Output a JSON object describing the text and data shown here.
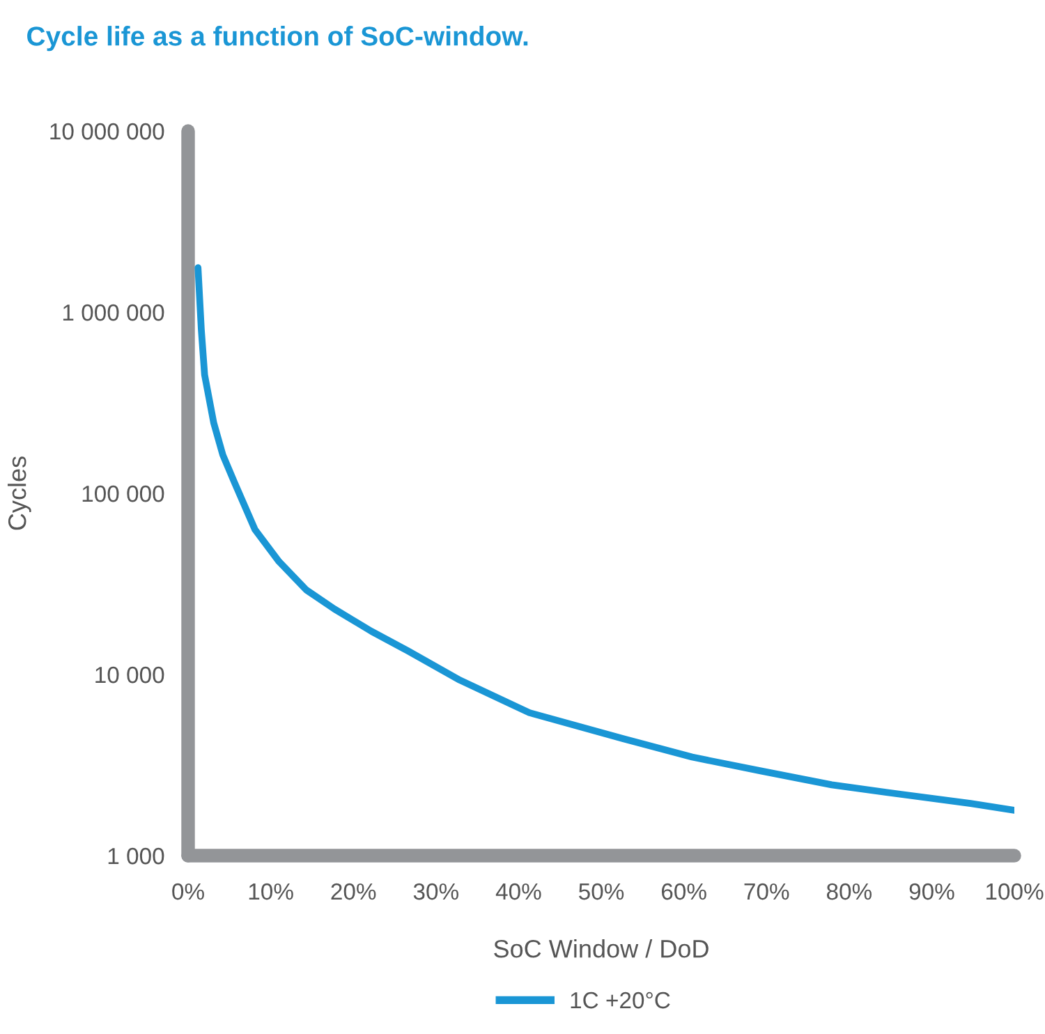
{
  "chart_data": {
    "type": "line",
    "title": "Cycle life as a function of SoC-window.",
    "xlabel": "SoC Window / DoD",
    "ylabel": "Cycles",
    "x": [
      1.2,
      1.6,
      2,
      3.1,
      4.2,
      5.6,
      8.1,
      11,
      14.3,
      17.7,
      22.2,
      26.6,
      32.9,
      41.3,
      52.6,
      61,
      69.4,
      77.9,
      86.3,
      94.7,
      100
    ],
    "series": [
      {
        "name": "1C +20°C",
        "color": "#1a96d5",
        "values": [
          1760000,
          800000,
          450000,
          245000,
          163000,
          115000,
          63000,
          42000,
          29300,
          23000,
          17300,
          13500,
          9300,
          6150,
          4430,
          3500,
          2930,
          2460,
          2180,
          1940,
          1780
        ]
      }
    ],
    "log": "y",
    "xlim": [
      0,
      100
    ],
    "ylim": [
      1000,
      10000000
    ],
    "xticks": [
      {
        "value": 0,
        "label": "0%"
      },
      {
        "value": 10,
        "label": "10%"
      },
      {
        "value": 20,
        "label": "20%"
      },
      {
        "value": 30,
        "label": "30%"
      },
      {
        "value": 40,
        "label": "40%"
      },
      {
        "value": 50,
        "label": "50%"
      },
      {
        "value": 60,
        "label": "60%"
      },
      {
        "value": 70,
        "label": "70%"
      },
      {
        "value": 80,
        "label": "80%"
      },
      {
        "value": 90,
        "label": "90%"
      },
      {
        "value": 100,
        "label": "100%"
      }
    ],
    "yticks": [
      {
        "value": 1000,
        "label": "1 000"
      },
      {
        "value": 10000,
        "label": "10 000"
      },
      {
        "value": 100000,
        "label": "100 000"
      },
      {
        "value": 1000000,
        "label": "1 000 000"
      },
      {
        "value": 10000000,
        "label": "10 000 000"
      }
    ],
    "grid": false,
    "legend": "bottom",
    "marker": "none",
    "line_style": "solid"
  }
}
